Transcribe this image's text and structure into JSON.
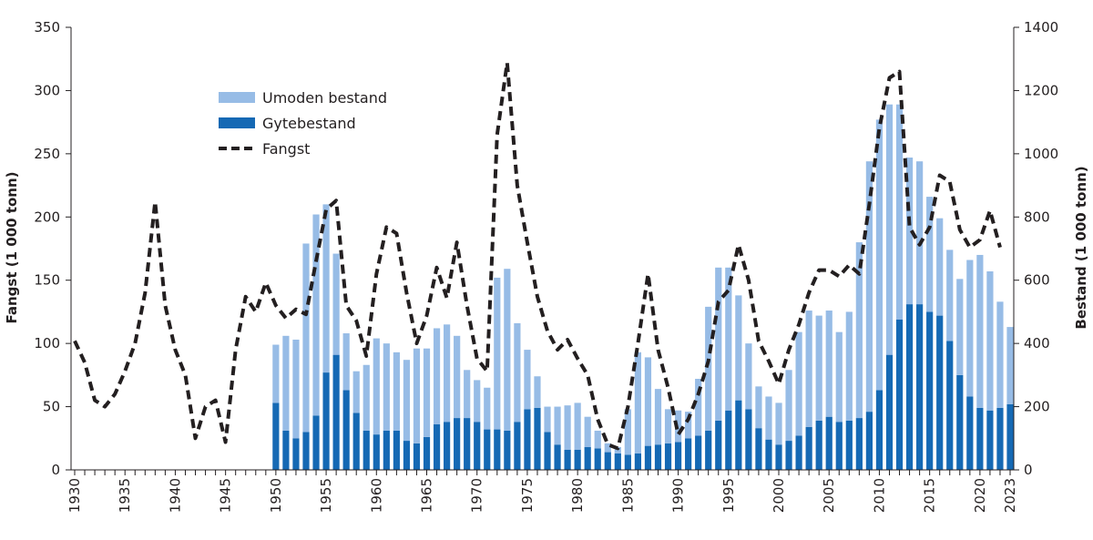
{
  "chart_data": {
    "type": "bar+line",
    "xlabel": "",
    "ylabel_left": "Fangst  (1 000 tonn)",
    "ylabel_right": "Bestand (1 000 tonn)",
    "ylim_left": [
      0,
      350
    ],
    "ylim_right": [
      0,
      1400
    ],
    "yticks_left": [
      "0",
      "50",
      "100",
      "150",
      "200",
      "250",
      "300",
      "350"
    ],
    "yticks_right": [
      "0",
      "200",
      "400",
      "600",
      "800",
      "1000",
      "1200",
      "1400"
    ],
    "xticks": [
      "1930",
      "1935",
      "1940",
      "1945",
      "1950",
      "1955",
      "1960",
      "1965",
      "1970",
      "1975",
      "1980",
      "1985",
      "1990",
      "1995",
      "2000",
      "2005",
      "2010",
      "2015",
      "2020",
      "2023"
    ],
    "xlim": [
      1930,
      2023
    ],
    "legend_position": "top-left",
    "colors": {
      "umoden": "#97bce6",
      "gyte": "#1569b4",
      "fangst": "#231f20"
    },
    "bar_years": [
      1950,
      1951,
      1952,
      1953,
      1954,
      1955,
      1956,
      1957,
      1958,
      1959,
      1960,
      1961,
      1962,
      1963,
      1964,
      1965,
      1966,
      1967,
      1968,
      1969,
      1970,
      1971,
      1972,
      1973,
      1974,
      1975,
      1976,
      1977,
      1978,
      1979,
      1980,
      1981,
      1982,
      1983,
      1984,
      1985,
      1986,
      1987,
      1988,
      1989,
      1990,
      1991,
      1992,
      1993,
      1994,
      1995,
      1996,
      1997,
      1998,
      1999,
      2000,
      2001,
      2002,
      2003,
      2004,
      2005,
      2006,
      2007,
      2008,
      2009,
      2010,
      2011,
      2012,
      2013,
      2014,
      2015,
      2016,
      2017,
      2018,
      2019,
      2020,
      2021,
      2022,
      2023
    ],
    "series": [
      {
        "name": "Gytebestand",
        "axis": "right",
        "type": "bar-stacked",
        "values": [
          212,
          124,
          100,
          120,
          172,
          308,
          364,
          252,
          180,
          124,
          112,
          124,
          124,
          92,
          84,
          104,
          144,
          152,
          164,
          164,
          152,
          128,
          128,
          124,
          152,
          192,
          196,
          120,
          80,
          64,
          64,
          72,
          68,
          56,
          52,
          48,
          52,
          76,
          80,
          84,
          88,
          100,
          108,
          124,
          156,
          188,
          220,
          192,
          132,
          96,
          80,
          92,
          108,
          136,
          156,
          168,
          152,
          156,
          164,
          184,
          252,
          364,
          476,
          524,
          524,
          500,
          488,
          408,
          300,
          232,
          196,
          188,
          196,
          208
        ]
      },
      {
        "name": "Umoden bestand",
        "axis": "right",
        "type": "bar-stacked",
        "values": [
          184,
          300,
          312,
          596,
          636,
          532,
          320,
          180,
          132,
          208,
          304,
          276,
          248,
          256,
          300,
          280,
          304,
          308,
          260,
          152,
          132,
          132,
          480,
          512,
          312,
          188,
          100,
          80,
          120,
          140,
          148,
          96,
          56,
          28,
          20,
          144,
          320,
          280,
          176,
          108,
          100,
          84,
          180,
          392,
          484,
          452,
          332,
          208,
          132,
          136,
          132,
          224,
          328,
          368,
          332,
          336,
          284,
          344,
          556,
          792,
          856,
          792,
          680,
          464,
          452,
          364,
          308,
          288,
          304,
          432,
          484,
          440,
          336,
          244
        ]
      },
      {
        "name": "Fangst",
        "axis": "left",
        "type": "line-dashed",
        "x": [
          1930,
          1931,
          1932,
          1933,
          1934,
          1935,
          1936,
          1937,
          1938,
          1939,
          1940,
          1941,
          1942,
          1943,
          1944,
          1945,
          1946,
          1947,
          1948,
          1949,
          1950,
          1951,
          1952,
          1953,
          1954,
          1955,
          1956,
          1957,
          1958,
          1959,
          1960,
          1961,
          1962,
          1963,
          1964,
          1965,
          1966,
          1967,
          1968,
          1969,
          1970,
          1971,
          1972,
          1973,
          1974,
          1975,
          1976,
          1977,
          1978,
          1979,
          1980,
          1981,
          1982,
          1983,
          1984,
          1985,
          1986,
          1987,
          1988,
          1989,
          1990,
          1991,
          1992,
          1993,
          1994,
          1995,
          1996,
          1997,
          1998,
          1999,
          2000,
          2001,
          2002,
          2003,
          2004,
          2005,
          2006,
          2007,
          2008,
          2009,
          2010,
          2011,
          2012,
          2013,
          2014,
          2015,
          2016,
          2017,
          2018,
          2019,
          2020,
          2021,
          2022
        ],
        "values": [
          102,
          85,
          55,
          50,
          60,
          78,
          100,
          140,
          212,
          130,
          95,
          75,
          25,
          50,
          55,
          22,
          95,
          137,
          125,
          148,
          130,
          120,
          127,
          123,
          165,
          206,
          213,
          130,
          118,
          90,
          155,
          192,
          187,
          140,
          100,
          122,
          160,
          136,
          180,
          130,
          88,
          78,
          265,
          322,
          225,
          180,
          137,
          110,
          95,
          103,
          88,
          75,
          40,
          20,
          17,
          50,
          100,
          155,
          95,
          65,
          28,
          40,
          60,
          86,
          133,
          142,
          178,
          150,
          102,
          86,
          68,
          95,
          115,
          140,
          158,
          158,
          153,
          162,
          155,
          210,
          270,
          310,
          315,
          192,
          178,
          192,
          233,
          228,
          190,
          176,
          182,
          205,
          176
        ]
      }
    ]
  }
}
